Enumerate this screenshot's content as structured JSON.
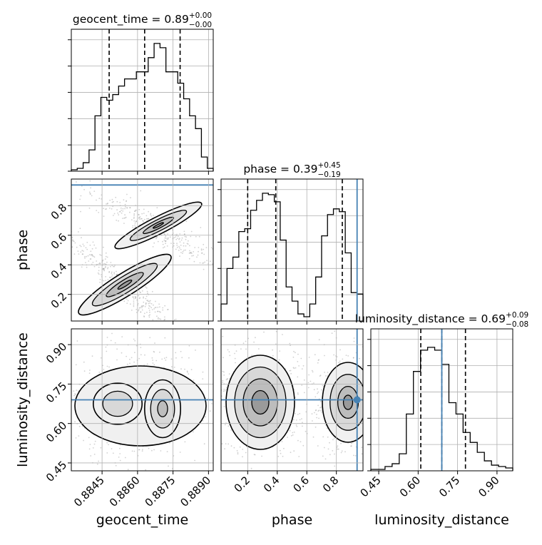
{
  "chart_data": {
    "type": "corner",
    "grid": true,
    "truth_color": "#4682b4",
    "parameters": [
      {
        "name": "geocent_time",
        "title": "geocent_time = 0.89",
        "title_sup": "+0.00",
        "title_sub": "−0.00",
        "range": [
          0.8832,
          0.8892
        ],
        "ticks": [
          "0.8845",
          "0.8860",
          "0.8875",
          "0.8890"
        ],
        "tick_values": [
          0.8845,
          0.886,
          0.8875,
          0.889
        ],
        "quantiles": [
          0.8848,
          0.8863,
          0.8878
        ],
        "truth": null,
        "histogram": [
          0.01,
          0.02,
          0.06,
          0.15,
          0.39,
          0.52,
          0.5,
          0.54,
          0.6,
          0.65,
          0.65,
          0.7,
          0.7,
          0.8,
          0.9,
          0.87,
          0.7,
          0.7,
          0.62,
          0.51,
          0.39,
          0.3,
          0.1,
          0.02
        ]
      },
      {
        "name": "phase",
        "title": "phase = 0.39",
        "title_sup": "+0.45",
        "title_sub": "−0.19",
        "range": [
          0.02,
          0.98
        ],
        "ticks": [
          "0.2",
          "0.4",
          "0.6",
          "0.8"
        ],
        "tick_values": [
          0.2,
          0.4,
          0.6,
          0.8
        ],
        "quantiles": [
          0.2,
          0.39,
          0.84
        ],
        "truth": 0.94,
        "histogram": [
          0.12,
          0.37,
          0.45,
          0.63,
          0.65,
          0.78,
          0.85,
          0.9,
          0.89,
          0.84,
          0.57,
          0.24,
          0.14,
          0.05,
          0.03,
          0.12,
          0.31,
          0.6,
          0.75,
          0.79,
          0.77,
          0.48,
          0.2,
          0.19
        ]
      },
      {
        "name": "luminosity_distance",
        "title": "luminosity_distance = 0.69",
        "title_sup": "+0.09",
        "title_sub": "−0.08",
        "range": [
          0.42,
          0.96
        ],
        "ticks": [
          "0.45",
          "0.60",
          "0.75",
          "0.90"
        ],
        "tick_values": [
          0.45,
          0.6,
          0.75,
          0.9
        ],
        "quantiles": [
          0.61,
          0.69,
          0.78
        ],
        "truth": 0.69,
        "histogram": [
          0.01,
          0.01,
          0.03,
          0.05,
          0.12,
          0.4,
          0.7,
          0.85,
          0.87,
          0.85,
          0.75,
          0.48,
          0.4,
          0.27,
          0.2,
          0.13,
          0.07,
          0.04,
          0.03,
          0.02
        ]
      }
    ]
  }
}
